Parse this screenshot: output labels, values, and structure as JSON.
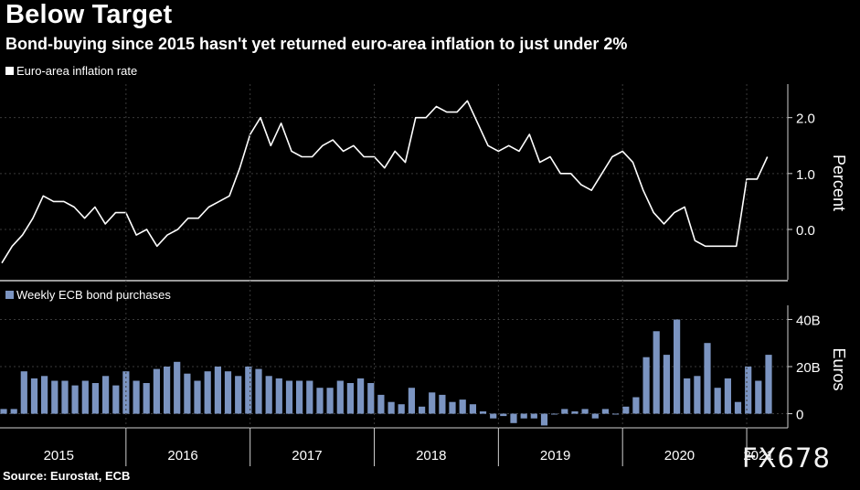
{
  "header": {
    "title": "Below Target",
    "subtitle": "Bond-buying since 2015 hasn't yet returned euro-area inflation to just under 2%"
  },
  "footer": {
    "source": "Source: Eurostat, ECB",
    "watermark": "FX678"
  },
  "colors": {
    "background": "#000000",
    "inflation_line": "#ffffff",
    "bars": "#7b94c1",
    "grid": "#3a3a3a"
  },
  "chart_data": [
    {
      "type": "line",
      "legend": "Euro-area inflation rate",
      "ylabel": "Percent",
      "y_ticks": [
        "2.0",
        "1.0",
        "0.0"
      ],
      "y_tick_values": [
        2.0,
        1.0,
        0.0
      ],
      "ylim": [
        -0.9,
        2.6
      ],
      "grid": true,
      "x_start": "2015-01",
      "x_step": "month",
      "values": [
        -0.6,
        -0.3,
        -0.1,
        0.2,
        0.6,
        0.5,
        0.5,
        0.4,
        0.2,
        0.4,
        0.1,
        0.3,
        0.3,
        -0.1,
        0.0,
        -0.3,
        -0.1,
        0.0,
        0.2,
        0.2,
        0.4,
        0.5,
        0.6,
        1.1,
        1.7,
        2.0,
        1.5,
        1.9,
        1.4,
        1.3,
        1.3,
        1.5,
        1.6,
        1.4,
        1.5,
        1.3,
        1.3,
        1.1,
        1.4,
        1.2,
        2.0,
        2.0,
        2.2,
        2.1,
        2.1,
        2.3,
        1.9,
        1.5,
        1.4,
        1.5,
        1.4,
        1.7,
        1.2,
        1.3,
        1.0,
        1.0,
        0.8,
        0.7,
        1.0,
        1.3,
        1.4,
        1.2,
        0.7,
        0.3,
        0.1,
        0.3,
        0.4,
        -0.2,
        -0.3,
        -0.3,
        -0.3,
        -0.3,
        0.9,
        0.9,
        1.3
      ]
    },
    {
      "type": "bar",
      "legend": "Weekly ECB bond purchases",
      "ylabel": "Euros",
      "y_ticks": [
        "40B",
        "20B",
        "0"
      ],
      "y_tick_values": [
        40,
        20,
        0
      ],
      "ylim": [
        -6,
        46
      ],
      "grid": true,
      "x_ticks": [
        "2015",
        "2016",
        "2017",
        "2018",
        "2019",
        "2020",
        "2021"
      ],
      "values": [
        2,
        2,
        18,
        15,
        16,
        14,
        14,
        12,
        14,
        13,
        16,
        12,
        18,
        14,
        13,
        19,
        20,
        22,
        17,
        14,
        18,
        20,
        18,
        16,
        20,
        19,
        16,
        15,
        14,
        14,
        14,
        11,
        11,
        14,
        13,
        15,
        13,
        8,
        5,
        4,
        11,
        3,
        9,
        8,
        5,
        6,
        4,
        1,
        -2,
        -1,
        -4,
        -2,
        -2,
        -5,
        0,
        2,
        1,
        2,
        -2,
        2,
        0,
        3,
        7,
        24,
        35,
        25,
        40,
        15,
        16,
        30,
        11,
        15,
        5,
        20,
        14,
        25
      ]
    }
  ]
}
